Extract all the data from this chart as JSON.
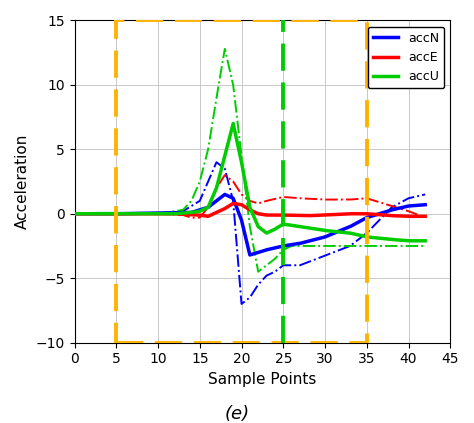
{
  "title": "(e)",
  "xlabel": "Sample Points",
  "ylabel": "Acceleration",
  "xlim": [
    0,
    45
  ],
  "ylim": [
    -10,
    15
  ],
  "xticks": [
    0,
    5,
    10,
    15,
    20,
    25,
    30,
    35,
    40,
    45
  ],
  "yticks": [
    -10,
    -5,
    0,
    5,
    10,
    15
  ],
  "legend": [
    "accN",
    "accE",
    "accU"
  ],
  "line_colors": [
    "#0000ff",
    "#ff0000",
    "#00cc00"
  ],
  "orange_color": "#FFB300",
  "green_dashed_x": 25,
  "orange_rect": {
    "x1": 5,
    "x2": 35,
    "y1": -10,
    "y2": 15
  }
}
